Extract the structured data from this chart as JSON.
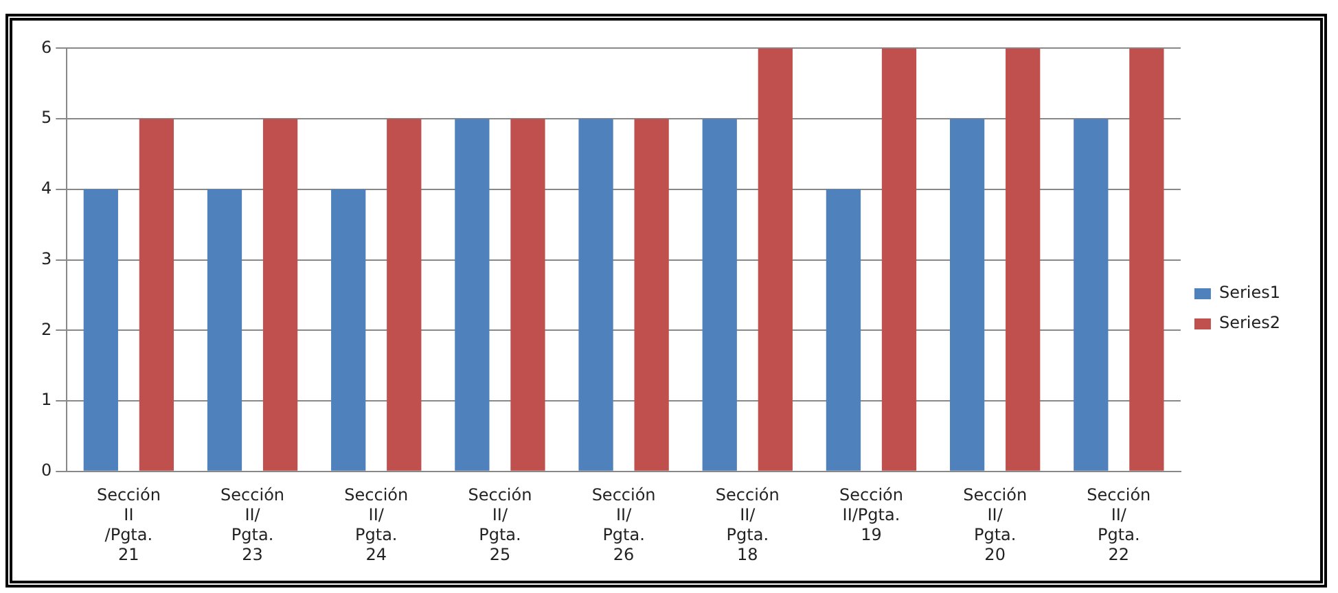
{
  "chart_data": {
    "type": "bar",
    "categories": [
      "Sección II /Pgta. 21",
      "Sección II/ Pgta. 23",
      "Sección II/ Pgta. 24",
      "Sección II/ Pgta. 25",
      "Sección II/ Pgta. 26",
      "Sección II/ Pgta. 18",
      "Sección II/Pgta. 19",
      "Sección II/ Pgta. 20",
      "Sección II/ Pgta. 22"
    ],
    "series": [
      {
        "name": "Series1",
        "color": "#4f81bd",
        "values": [
          4,
          4,
          4,
          5,
          5,
          5,
          4,
          5,
          5
        ]
      },
      {
        "name": "Series2",
        "color": "#c0504d",
        "values": [
          5,
          5,
          5,
          5,
          5,
          6,
          6,
          6,
          6
        ]
      }
    ],
    "ylim": [
      0,
      6
    ],
    "yticks": [
      0,
      1,
      2,
      3,
      4,
      5,
      6
    ],
    "grid": "y",
    "legend": "right"
  }
}
